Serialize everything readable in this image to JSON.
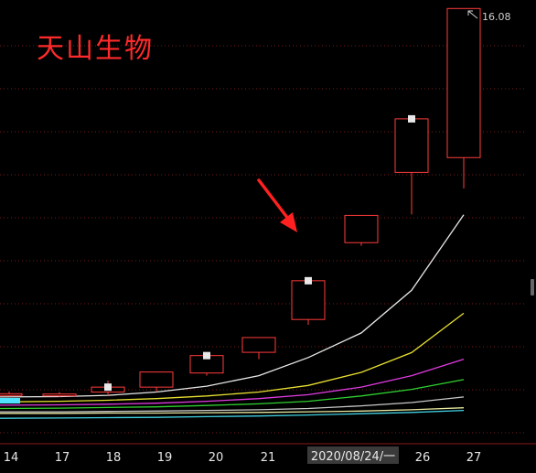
{
  "stock_name": "天山生物",
  "colors": {
    "background": "#000000",
    "candle": "#ff3b3b",
    "ma5": "#e8e8e8",
    "ma10": "#e8e030",
    "ma20": "#e03ae0",
    "ma30": "#30d030",
    "ma60": "#c8c8c8",
    "ma120": "#e8e8a0",
    "ma250": "#40d0e0",
    "arrow": "#ff2020",
    "grid": "#7a1a1a"
  },
  "chart_data": {
    "type": "candlestick",
    "title": "天山生物",
    "high_label": "16.08",
    "date_tag": "2020/08/24/一",
    "ylim": [
      3.3,
      16.2
    ],
    "x_labels": [
      "14",
      "17",
      "18",
      "19",
      "20",
      "21",
      "2020/08/24/一",
      "26",
      "27"
    ],
    "candles": [
      {
        "label": "14",
        "open": 4.35,
        "close": 4.35,
        "high": 4.42,
        "low": 4.28
      },
      {
        "label": "17",
        "open": 4.31,
        "close": 4.34,
        "high": 4.4,
        "low": 4.25
      },
      {
        "label": "18",
        "open": 4.4,
        "close": 4.55,
        "high": 4.75,
        "low": 4.3
      },
      {
        "label": "19",
        "open": 4.55,
        "close": 5.01,
        "high": 5.01,
        "low": 4.4
      },
      {
        "label": "20",
        "open": 4.98,
        "close": 5.51,
        "high": 5.51,
        "low": 4.9
      },
      {
        "label": "21",
        "open": 5.61,
        "close": 6.06,
        "high": 6.06,
        "low": 5.4
      },
      {
        "label": "24",
        "open": 6.61,
        "close": 7.79,
        "high": 7.79,
        "low": 6.45
      },
      {
        "label": "25",
        "open": 8.95,
        "close": 9.78,
        "high": 9.78,
        "low": 8.85
      },
      {
        "label": "26",
        "open": 11.09,
        "close": 12.72,
        "high": 12.72,
        "low": 9.81
      },
      {
        "label": "27",
        "open": 11.54,
        "close": 16.08,
        "high": 16.08,
        "low": 10.6
      }
    ],
    "moving_averages": [
      {
        "name": "MA5",
        "values": [
          4.25,
          4.26,
          4.3,
          4.4,
          4.58,
          4.9,
          5.45,
          6.2,
          7.5,
          9.8
        ]
      },
      {
        "name": "MA10",
        "values": [
          4.1,
          4.12,
          4.15,
          4.2,
          4.28,
          4.4,
          4.6,
          5.0,
          5.6,
          6.8
        ]
      },
      {
        "name": "MA20",
        "values": [
          4.0,
          4.01,
          4.03,
          4.06,
          4.12,
          4.2,
          4.32,
          4.55,
          4.9,
          5.4
        ]
      },
      {
        "name": "MA30",
        "values": [
          3.9,
          3.91,
          3.93,
          3.95,
          3.99,
          4.04,
          4.12,
          4.28,
          4.48,
          4.78
        ]
      },
      {
        "name": "MA60",
        "values": [
          3.8,
          3.8,
          3.81,
          3.82,
          3.84,
          3.86,
          3.9,
          3.98,
          4.08,
          4.25
        ]
      },
      {
        "name": "MA120",
        "values": [
          3.75,
          3.75,
          3.76,
          3.76,
          3.77,
          3.78,
          3.8,
          3.82,
          3.86,
          3.92
        ]
      },
      {
        "name": "MA250",
        "values": [
          3.6,
          3.61,
          3.62,
          3.63,
          3.65,
          3.67,
          3.7,
          3.74,
          3.78,
          3.84
        ]
      }
    ]
  }
}
